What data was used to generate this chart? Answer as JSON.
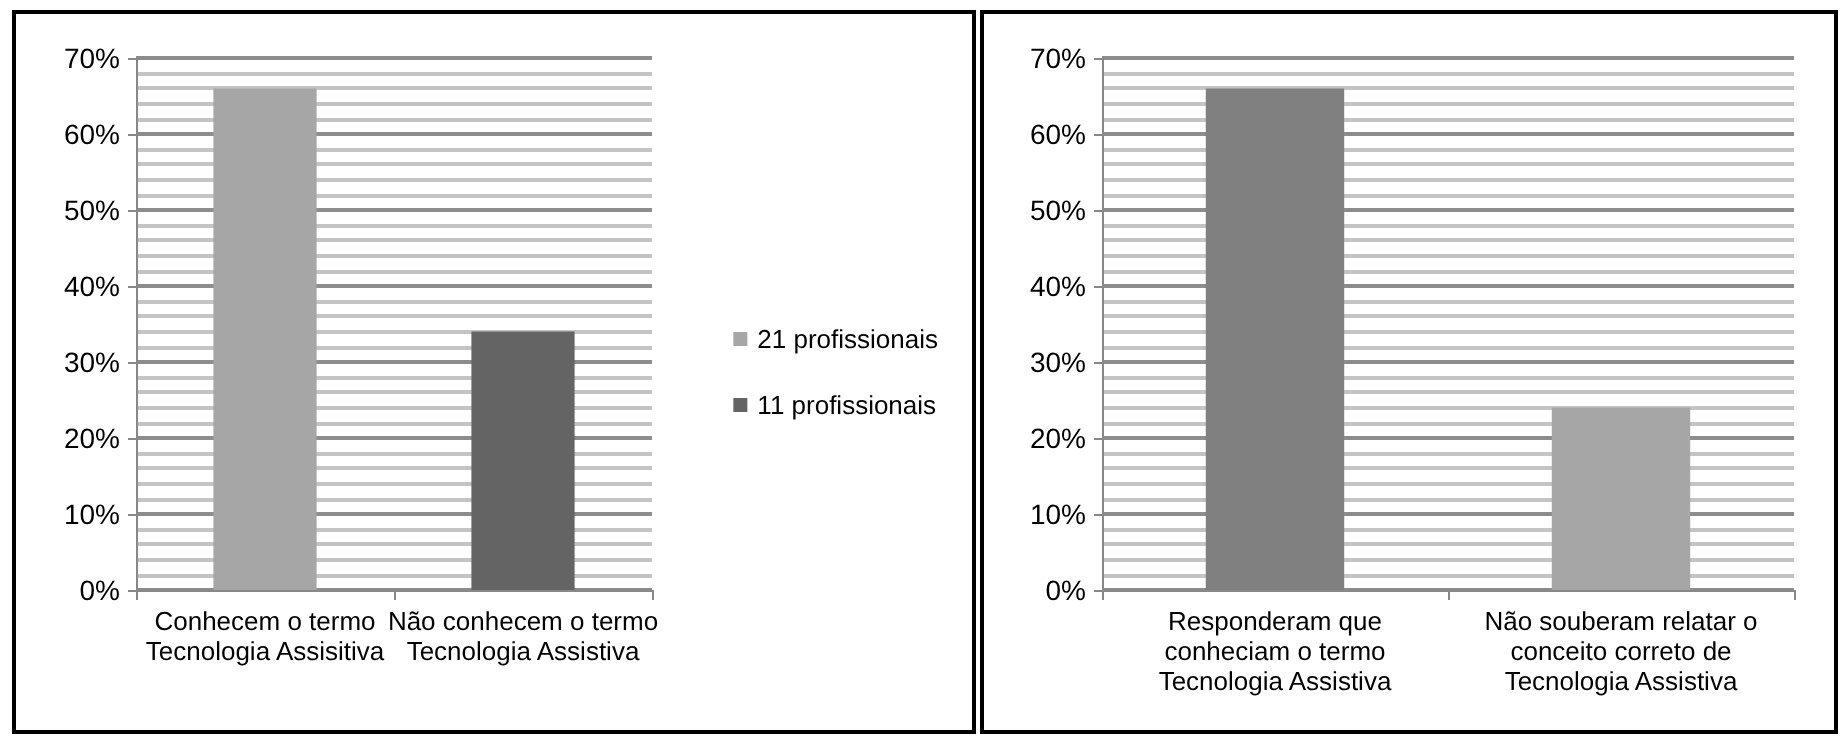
{
  "chart_data": [
    {
      "type": "bar",
      "categories": [
        "Conhecem o termo Tecnologia Assisitiva",
        "Não conhecem o termo Tecnologia Assistiva"
      ],
      "stacked": true,
      "series": [
        {
          "name": "21 profissionais",
          "color": "#a6a6a6",
          "values": [
            66,
            null
          ]
        },
        {
          "name": "11 profissionais",
          "color": "#646464",
          "values": [
            null,
            34
          ]
        }
      ],
      "ylim": [
        0,
        70
      ],
      "yticks": [
        {
          "value": 0,
          "label": "0%"
        },
        {
          "value": 10,
          "label": "10%"
        },
        {
          "value": 20,
          "label": "20%"
        },
        {
          "value": 30,
          "label": "30%"
        },
        {
          "value": 40,
          "label": "40%"
        },
        {
          "value": 50,
          "label": "50%"
        },
        {
          "value": 60,
          "label": "60%"
        },
        {
          "value": 70,
          "label": "70%"
        }
      ],
      "grid": true,
      "legend": "right"
    },
    {
      "type": "bar",
      "categories": [
        "Responderam que conheciam o termo Tecnologia Assistiva",
        "Não souberam relatar o conceito correto de Tecnologia Assistiva"
      ],
      "values": [
        66,
        24
      ],
      "colors": [
        "#808080",
        "#a6a6a6"
      ],
      "ylim": [
        0,
        70
      ],
      "yticks": [
        {
          "value": 0,
          "label": "0%"
        },
        {
          "value": 10,
          "label": "10%"
        },
        {
          "value": 20,
          "label": "20%"
        },
        {
          "value": 30,
          "label": "30%"
        },
        {
          "value": 40,
          "label": "40%"
        },
        {
          "value": 50,
          "label": "50%"
        },
        {
          "value": 60,
          "label": "60%"
        },
        {
          "value": 70,
          "label": "70%"
        }
      ],
      "grid": true
    }
  ]
}
